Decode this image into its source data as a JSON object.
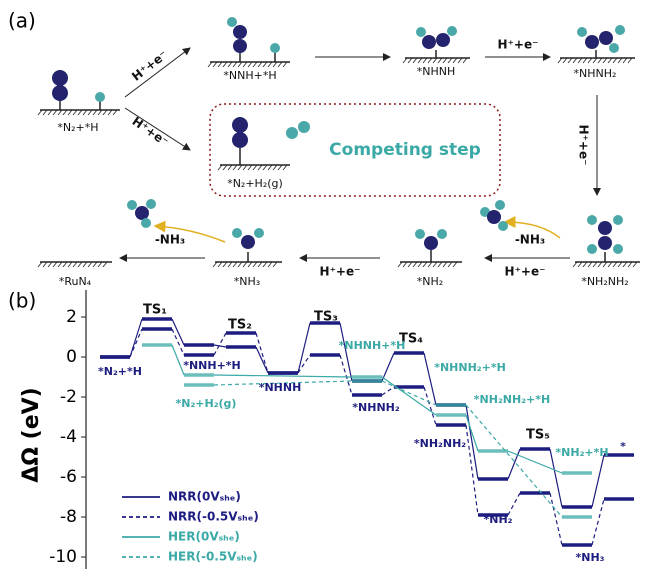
{
  "panel_a": {
    "label": "(a)",
    "states": [
      "*N₂+*H",
      "*NNH+*H",
      "*NHNH",
      "*NHNH₂",
      "*N₂+H₂(g)",
      "*NH₂NH₂",
      "*NH₂",
      "*NH₃",
      "*RuN₄"
    ],
    "step_labels": [
      "H⁺+e⁻",
      "H⁺+e⁻",
      "H⁺+e⁻",
      "H⁺+e⁻",
      "H⁺+e⁻",
      "H⁺+e⁻"
    ],
    "release_labels": [
      "-NH₃",
      "-NH₃"
    ],
    "competing_label": "Competing step"
  },
  "chart_data": {
    "type": "energy_profile",
    "panel_label": "(b)",
    "y_label": "ΔΩ (eV)",
    "ylim": [
      -10.6,
      2.85
    ],
    "yticks": [
      2,
      0,
      -2,
      -4,
      -6,
      -8,
      -10
    ],
    "series": [
      {
        "name": "NRR(0Vₛₕₑ)",
        "color": "#1d1d80",
        "dashed": false,
        "values": [
          0,
          1.9,
          0.6,
          0.5,
          -0.8,
          1.7,
          -1.2,
          0.2,
          -2.4,
          -6.1,
          -4.6,
          -7.5,
          -4.9
        ]
      },
      {
        "name": "NRR(-0.5Vₛₕₑ)",
        "color": "#1d1d80",
        "dashed": true,
        "values": [
          0,
          1.4,
          0.1,
          1.2,
          -0.8,
          0.1,
          -1.9,
          -1.5,
          -3.4,
          -7.9,
          -6.8,
          -9.4,
          -7.1
        ]
      },
      {
        "name": "HER(0Vₛₕₑ)",
        "color": "#3ba9a6",
        "dashed": false,
        "values": [
          null,
          0.6,
          -0.9,
          null,
          null,
          null,
          -1.0,
          null,
          -2.9,
          -4.7,
          null,
          -5.8,
          null
        ]
      },
      {
        "name": "HER(-0.5Vₛₕₑ)",
        "color": "#3ba9a6",
        "dashed": true,
        "values": [
          null,
          null,
          -1.4,
          null,
          null,
          null,
          -1.2,
          null,
          -2.4,
          null,
          null,
          -8.0,
          null
        ]
      }
    ],
    "annotations": [
      "TS₁",
      "TS₂",
      "TS₃",
      "TS₄",
      "TS₅",
      "*N₂+*H",
      "*NNH+*H",
      "*N₂+H₂(g)",
      "*NHNH",
      "*NHNH+*H",
      "*NHNH₂",
      "*NHNH₂+*H",
      "*NH₂NH₂+*H",
      "*NH₂NH₂",
      "*NH₂+*H",
      "*NH₂",
      "*NH₃",
      "*"
    ]
  }
}
